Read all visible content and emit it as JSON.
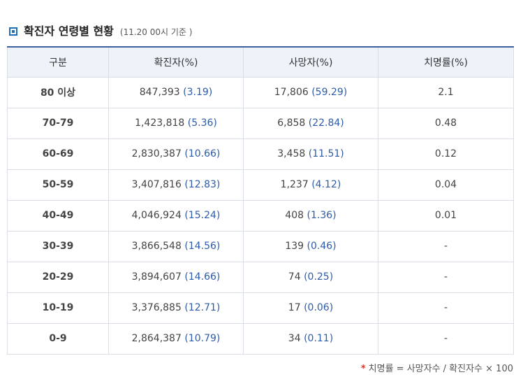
{
  "heading": {
    "title": "확진자 연령별 현황",
    "subtitle": "(11.20 00시 기준 )"
  },
  "table": {
    "headers": [
      "구분",
      "확진자(%)",
      "사망자(%)",
      "치명률(%)"
    ],
    "rows": [
      {
        "age": "80 이상",
        "cases": "847,393",
        "cases_pct": "(3.19)",
        "deaths": "17,806",
        "deaths_pct": "(59.29)",
        "fatality": "2.1"
      },
      {
        "age": "70-79",
        "cases": "1,423,818",
        "cases_pct": "(5.36)",
        "deaths": "6,858",
        "deaths_pct": "(22.84)",
        "fatality": "0.48"
      },
      {
        "age": "60-69",
        "cases": "2,830,387",
        "cases_pct": "(10.66)",
        "deaths": "3,458",
        "deaths_pct": "(11.51)",
        "fatality": "0.12"
      },
      {
        "age": "50-59",
        "cases": "3,407,816",
        "cases_pct": "(12.83)",
        "deaths": "1,237",
        "deaths_pct": "(4.12)",
        "fatality": "0.04"
      },
      {
        "age": "40-49",
        "cases": "4,046,924",
        "cases_pct": "(15.24)",
        "deaths": "408",
        "deaths_pct": "(1.36)",
        "fatality": "0.01"
      },
      {
        "age": "30-39",
        "cases": "3,866,548",
        "cases_pct": "(14.56)",
        "deaths": "139",
        "deaths_pct": "(0.46)",
        "fatality": "-"
      },
      {
        "age": "20-29",
        "cases": "3,894,607",
        "cases_pct": "(14.66)",
        "deaths": "74",
        "deaths_pct": "(0.25)",
        "fatality": "-"
      },
      {
        "age": "10-19",
        "cases": "3,376,885",
        "cases_pct": "(12.71)",
        "deaths": "17",
        "deaths_pct": "(0.06)",
        "fatality": "-"
      },
      {
        "age": "0-9",
        "cases": "2,864,387",
        "cases_pct": "(10.79)",
        "deaths": "34",
        "deaths_pct": "(0.11)",
        "fatality": "-"
      }
    ]
  },
  "footnote": {
    "marker": "*",
    "text": "치명률 = 사망자수 / 확진자수 × 100"
  },
  "colors": {
    "accent": "#2e5ba8",
    "header_bg": "#eef3fa",
    "table_top_border": "#3b5e9c",
    "footnote_marker": "#d9382c"
  }
}
